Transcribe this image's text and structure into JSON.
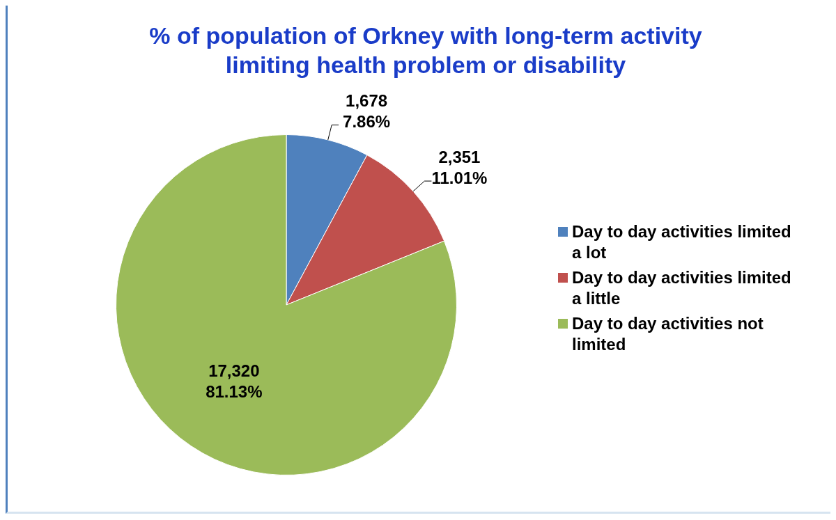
{
  "chart_data": {
    "type": "pie",
    "title": "% of population of Orkney with long-term activity limiting health problem or disability",
    "categories": [
      "Day to day activities limited a lot",
      "Day to day activities limited a little",
      "Day to day activities not limited"
    ],
    "values": [
      1678,
      2351,
      17320
    ],
    "colors": [
      "#4f81bd",
      "#c0504d",
      "#9bbb59"
    ],
    "value_labels": [
      "1,678\n7.86%",
      "2,351\n11.01%",
      "17,320\n81.13%"
    ],
    "legend": "right"
  }
}
